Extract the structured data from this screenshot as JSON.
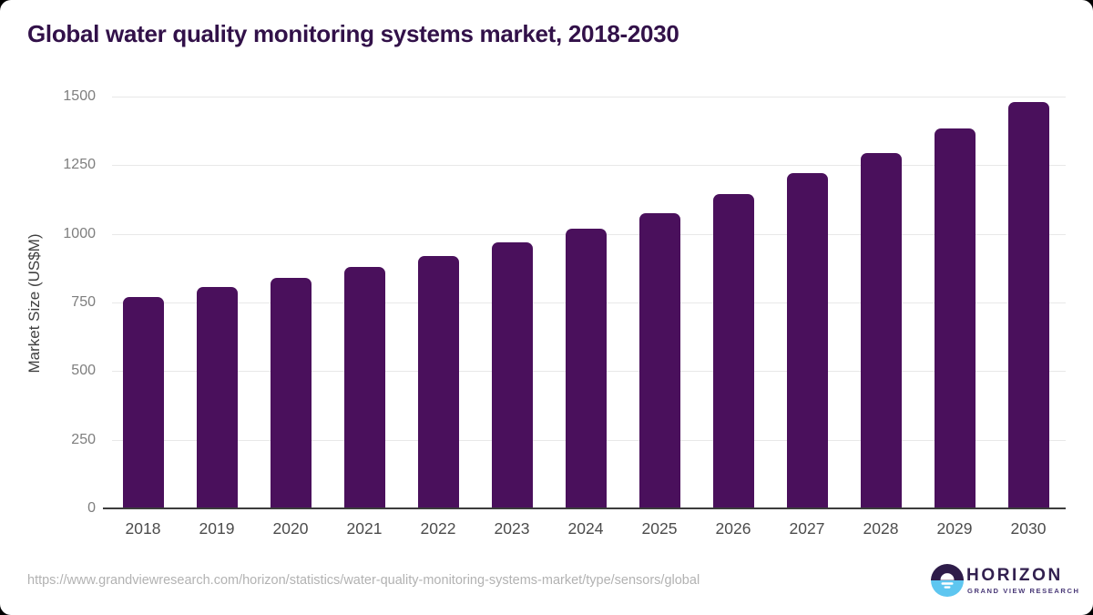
{
  "page": {
    "title": "Global water quality monitoring systems market, 2018-2030",
    "source_url": "https://www.grandviewresearch.com/horizon/statistics/water-quality-monitoring-systems-market/type/sensors/global"
  },
  "logo": {
    "wordmark": "HORIZON",
    "subtitle": "GRAND VIEW RESEARCH"
  },
  "colors": {
    "bar": "#4a105c",
    "title_text": "#321149",
    "axis_line": "#3c3c3c",
    "gridline": "#e8e8e8",
    "y_tick_text": "#7e7e7e",
    "x_tick_text": "#4c4c4c",
    "axis_title_text": "#404040",
    "url_text": "#b2b2b2",
    "logo_dark_half": "#2e1c49",
    "logo_blue_half": "#5ec6f0",
    "logo_text": "#32204f"
  },
  "chart_data": {
    "type": "bar",
    "title": "Global water quality monitoring systems market, 2018-2030",
    "categories": [
      "2018",
      "2019",
      "2020",
      "2021",
      "2022",
      "2023",
      "2024",
      "2025",
      "2026",
      "2027",
      "2028",
      "2029",
      "2030"
    ],
    "values": [
      770,
      805,
      840,
      880,
      920,
      970,
      1020,
      1075,
      1145,
      1220,
      1295,
      1385,
      1480
    ],
    "xlabel": "",
    "ylabel": "Market Size (US$M)",
    "ylim": [
      0,
      1500
    ],
    "ytick_step": 250,
    "yticks": [
      0,
      250,
      500,
      750,
      1000,
      1250,
      1500
    ],
    "grid": "horizontal",
    "legend_position": "none",
    "bar_color": "#4a105c"
  }
}
